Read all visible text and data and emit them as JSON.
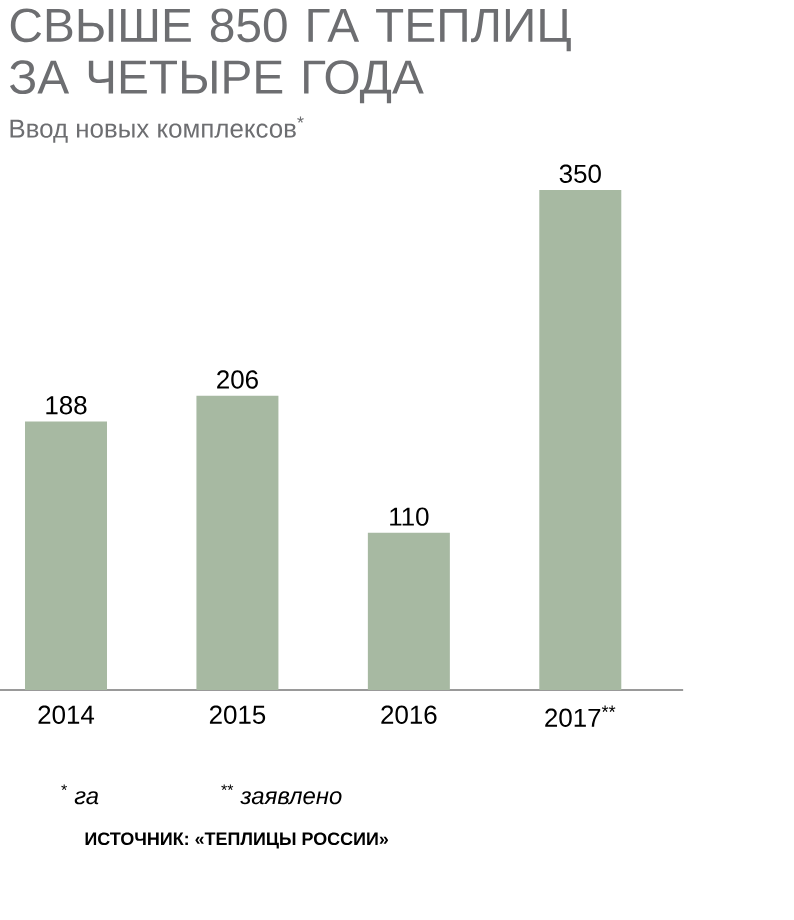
{
  "chart_data": {
    "type": "bar",
    "title": "СВЫШЕ 850 ГА ТЕПЛИЦ ЗА ЧЕТЫРЕ ГОДА",
    "subtitle": "Ввод новых комплексов$^{*}$",
    "categories": [
      "2014",
      "2015",
      "2016",
      "2017$^{**}$"
    ],
    "values": [
      188,
      206,
      110,
      350
    ],
    "color": "#a7b9a2",
    "data_labels": true,
    "annotations": [
      "$^{*}$ га",
      "$^{**}$ заявлено",
      "ИСТОЧНИК: «ТЕПЛИЦЫ РОССИИ»"
    ]
  }
}
